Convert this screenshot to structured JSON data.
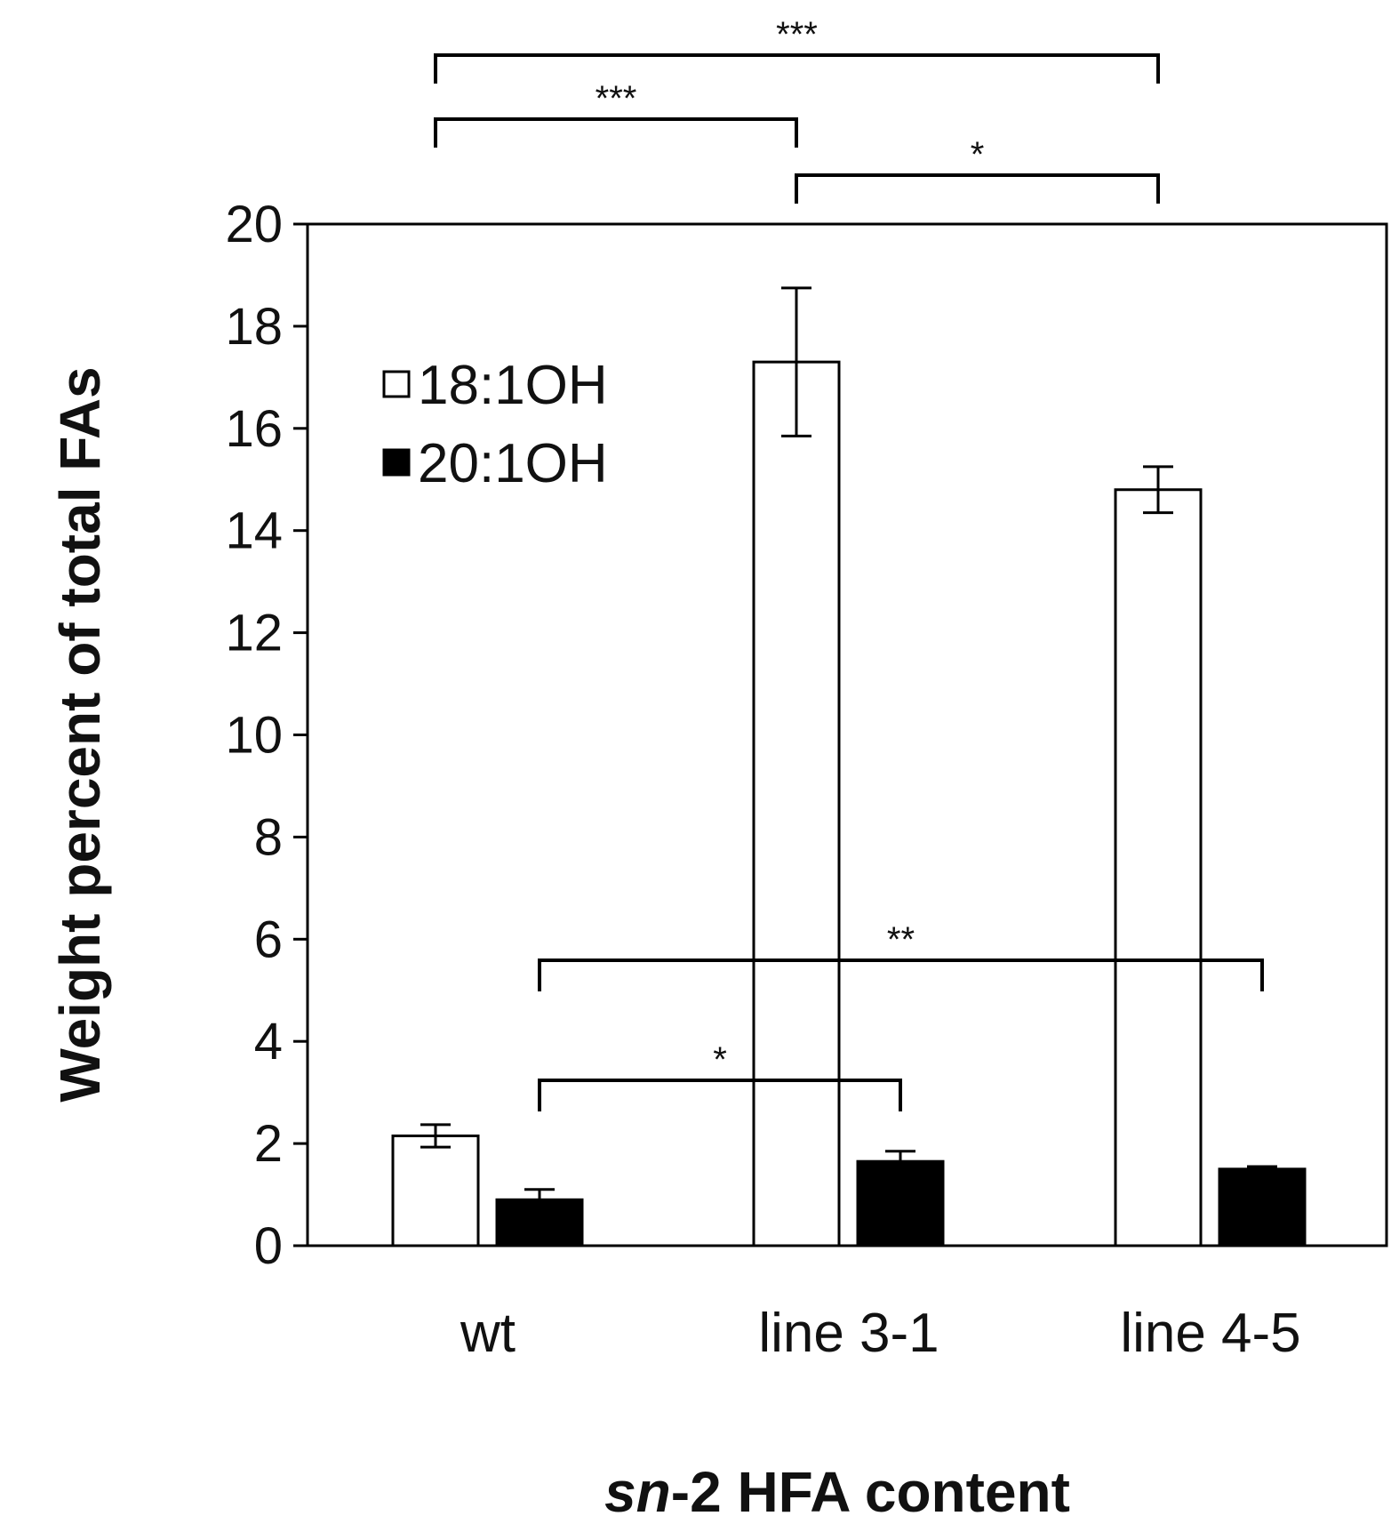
{
  "chart_data": {
    "type": "bar",
    "categories": [
      "wt",
      "line 3-1",
      "line 4-5"
    ],
    "series": [
      {
        "name": "18:1OH",
        "fill": "#ffffff",
        "values": [
          2.15,
          17.3,
          14.8
        ],
        "errors": [
          0.22,
          1.45,
          0.45
        ]
      },
      {
        "name": "20:1OH",
        "fill": "#000000",
        "values": [
          0.9,
          1.65,
          1.5
        ],
        "errors": [
          0.2,
          0.2,
          0.05
        ]
      }
    ],
    "ylim": [
      0,
      20
    ],
    "yticks": [
      "0",
      "2",
      "4",
      "6",
      "8",
      "10",
      "12",
      "14",
      "16",
      "18",
      "20"
    ],
    "ylabel": "Weight percent of total FAs",
    "xlabel_italic": "sn",
    "xlabel_rest": "-2 HFA content",
    "legend_position": "top-left",
    "significance": [
      {
        "label": "***",
        "series": 0,
        "from": 0,
        "to": 2
      },
      {
        "label": "***",
        "series": 0,
        "from": 0,
        "to": 1
      },
      {
        "label": "*",
        "series": 0,
        "from": 1,
        "to": 2
      },
      {
        "label": "**",
        "series": 1,
        "from": 0,
        "to": 2
      },
      {
        "label": "*",
        "series": 1,
        "from": 0,
        "to": 1
      }
    ]
  }
}
